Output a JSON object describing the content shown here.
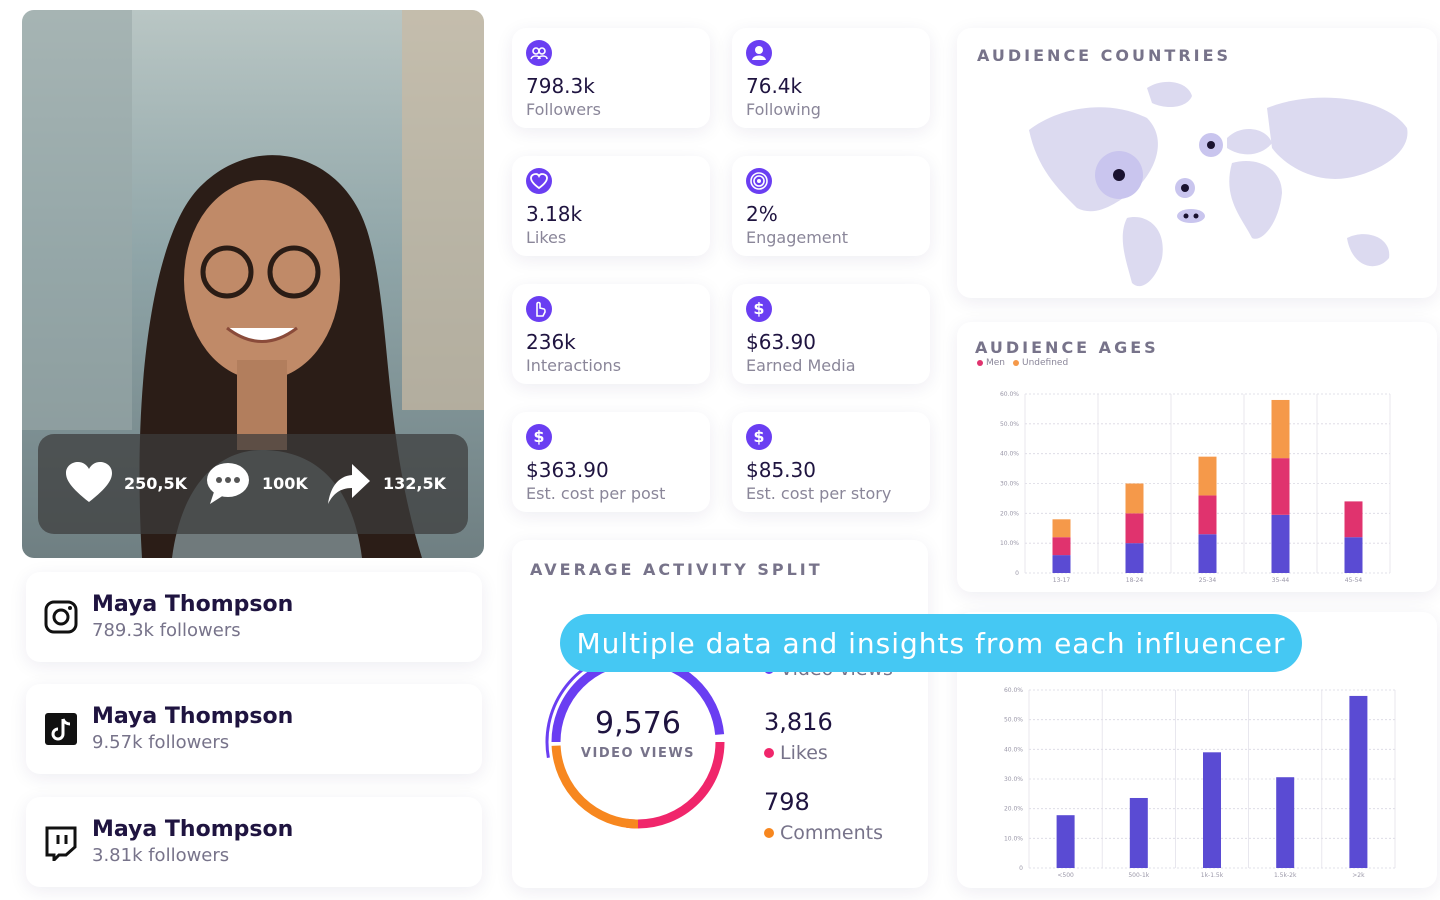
{
  "profile": {
    "stats": [
      "250,5K",
      "100K",
      "132,5K"
    ]
  },
  "accounts": [
    {
      "name": "Maya Thompson",
      "followers": "789.3k followers"
    },
    {
      "name": "Maya Thompson",
      "followers": "9.57k followers"
    },
    {
      "name": "Maya Thompson",
      "followers": "3.81k followers"
    }
  ],
  "metrics": [
    {
      "value": "798.3k",
      "label": "Followers"
    },
    {
      "value": "76.4k",
      "label": "Following"
    },
    {
      "value": "3.18k",
      "label": "Likes"
    },
    {
      "value": "2%",
      "label": "Engagement"
    },
    {
      "value": "236k",
      "label": "Interactions"
    },
    {
      "value": "$63.90",
      "label": "Earned Media"
    },
    {
      "value": "$363.90",
      "label": "Est. cost per post"
    },
    {
      "value": "$85.30",
      "label": "Est. cost per story"
    }
  ],
  "audience_countries": {
    "title": "AUDIENCE COUNTRIES"
  },
  "audience_ages": {
    "type": "bar",
    "title": "AUDIENCE AGES",
    "stacked": true,
    "categories": [
      "13-17",
      "18-24",
      "25-34",
      "35-44",
      "45-54"
    ],
    "series": [
      {
        "color": "#5a4bd3",
        "values": [
          6,
          10,
          13,
          19.5,
          12
        ]
      },
      {
        "name": "Men",
        "color": "#e0336e",
        "values": [
          6,
          10,
          13,
          19,
          12
        ]
      },
      {
        "name": "Undefined",
        "color": "#f5994a",
        "values": [
          6,
          10,
          13,
          19.5,
          0
        ]
      }
    ],
    "ylim": [
      0,
      60
    ],
    "yticks": [
      0,
      {
        "value": 10,
        "label": "10.0%"
      },
      {
        "value": 20,
        "label": "20.0%"
      },
      {
        "value": 30,
        "label": "30.0%"
      },
      {
        "value": 40,
        "label": "40.0%"
      },
      {
        "value": 50,
        "label": "50.0%"
      },
      {
        "value": 60,
        "label": "60.0%"
      }
    ],
    "grid": true
  },
  "activity": {
    "title": "AVERAGE ACTIVITY SPLIT",
    "total": "9,576",
    "total_label": "VIDEO VIEWS",
    "items": [
      {
        "label": "Video views",
        "color": "#6a3ef2"
      },
      {
        "value": "3,816",
        "label": "Likes",
        "color": "#f0266b"
      },
      {
        "value": "798",
        "label": "Comments",
        "color": "#f7871f"
      }
    ]
  },
  "banner": "Multiple data and insights from each influencer",
  "reach_chart": {
    "type": "bar",
    "categories": [
      "<500",
      "500-1k",
      "1k-1.5k",
      "1.5k-2k",
      ">2k"
    ],
    "series": [
      {
        "color": "#5a4bd3",
        "values": [
          17.8,
          23.6,
          39,
          30.6,
          58
        ]
      }
    ],
    "ylim": [
      0,
      60
    ],
    "yticks": [
      0,
      {
        "value": 10,
        "label": "10.0%"
      },
      {
        "value": 20,
        "label": "20.0%"
      },
      {
        "value": 30,
        "label": "30.0%"
      },
      {
        "value": 40,
        "label": "40.0%"
      },
      {
        "value": 50,
        "label": "50.0%"
      },
      {
        "value": 60,
        "label": "60.0%"
      }
    ],
    "grid": true
  }
}
